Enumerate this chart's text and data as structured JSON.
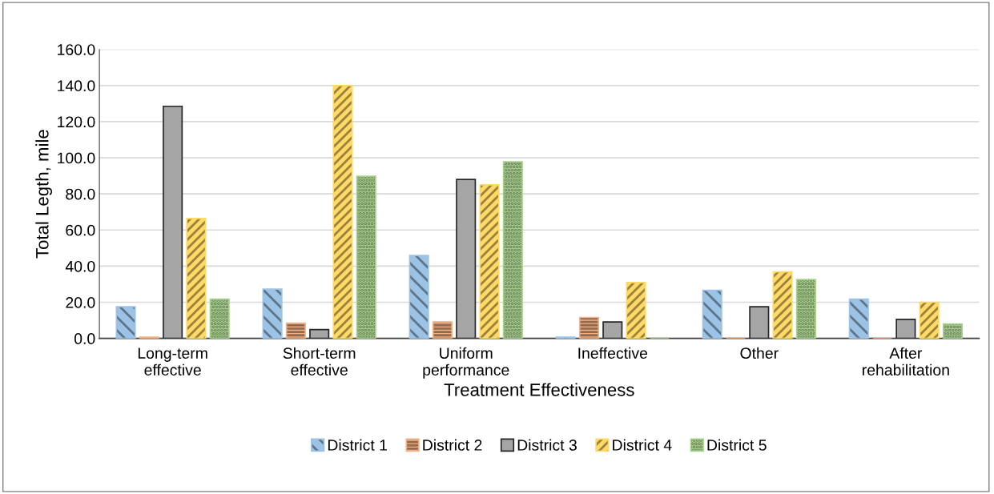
{
  "chart_data": {
    "type": "bar",
    "xlabel": "Treatment Effectiveness",
    "ylabel": "Total Legth, mile",
    "categories": [
      "Long-term\neffective",
      "Short-term\neffective",
      "Uniform\nperformance",
      "Ineffective",
      "Other",
      "After\nrehabilitation"
    ],
    "series": [
      {
        "name": "District 1",
        "color": "#9cc2e5",
        "values": [
          17.5,
          27.3,
          45.9,
          0.7,
          26.6,
          21.7
        ]
      },
      {
        "name": "District 2",
        "color": "#f4b183",
        "values": [
          0.7,
          8.4,
          9.1,
          11.6,
          0,
          0
        ]
      },
      {
        "name": "District 3",
        "color": "#a5a5a5",
        "values": [
          128.5,
          4.9,
          88.0,
          9.1,
          17.5,
          10.5
        ]
      },
      {
        "name": "District 4",
        "color": "#ffd966",
        "values": [
          66.4,
          140.0,
          85.0,
          30.9,
          36.8,
          20.0
        ]
      },
      {
        "name": "District 5",
        "color": "#a9d18e",
        "values": [
          21.7,
          89.8,
          97.8,
          0,
          32.6,
          8.0
        ]
      }
    ],
    "ylim": [
      0,
      160
    ],
    "yticks": [
      {
        "value": 0,
        "label": "0.0"
      },
      {
        "value": 20,
        "label": "20.0"
      },
      {
        "value": 40,
        "label": "40.0"
      },
      {
        "value": 60,
        "label": "60.0"
      },
      {
        "value": 80,
        "label": "80.0"
      },
      {
        "value": 100,
        "label": "100.0"
      },
      {
        "value": 120,
        "label": "120.0"
      },
      {
        "value": 140,
        "label": "140.0"
      },
      {
        "value": 160,
        "label": "160.0"
      }
    ],
    "grid": "y",
    "legend": "bottom"
  }
}
